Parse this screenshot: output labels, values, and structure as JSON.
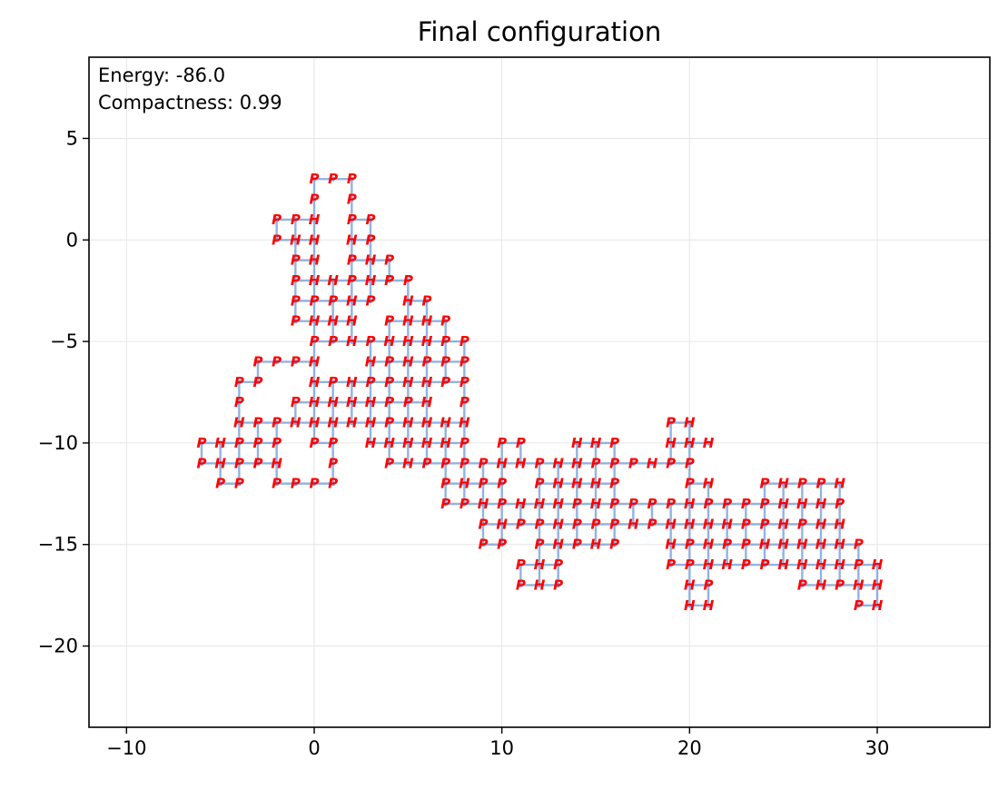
{
  "chart_data": {
    "type": "scatter",
    "title": "Final configuration",
    "xlabel": "",
    "ylabel": "",
    "xlim": [
      -12,
      36
    ],
    "ylim": [
      -24,
      9
    ],
    "x_ticks": [
      -10,
      0,
      10,
      20,
      30
    ],
    "x_tick_labels": [
      "−10",
      "0",
      "10",
      "20",
      "30"
    ],
    "y_ticks": [
      5,
      0,
      -5,
      -10,
      -15,
      -20
    ],
    "y_tick_labels": [
      "5",
      "0",
      "−5",
      "−10",
      "−15",
      "−20"
    ],
    "grid": true,
    "annotations": [
      "Energy: -86.0",
      "Compactness: 0.99"
    ],
    "chain_color": "#7ea6dd",
    "label_color": "#ff0000",
    "residues": [
      {
        "x": 0,
        "y": 3,
        "t": "P"
      },
      {
        "x": 1,
        "y": 3,
        "t": "P"
      },
      {
        "x": 2,
        "y": 3,
        "t": "P"
      },
      {
        "x": 0,
        "y": 2,
        "t": "P"
      },
      {
        "x": 2,
        "y": 2,
        "t": "P"
      },
      {
        "x": -2,
        "y": 1,
        "t": "P"
      },
      {
        "x": -1,
        "y": 1,
        "t": "P"
      },
      {
        "x": 0,
        "y": 1,
        "t": "H"
      },
      {
        "x": 2,
        "y": 1,
        "t": "P"
      },
      {
        "x": 3,
        "y": 1,
        "t": "P"
      },
      {
        "x": -2,
        "y": 0,
        "t": "P"
      },
      {
        "x": -1,
        "y": 0,
        "t": "H"
      },
      {
        "x": 0,
        "y": 0,
        "t": "H"
      },
      {
        "x": 2,
        "y": 0,
        "t": "H"
      },
      {
        "x": 3,
        "y": 0,
        "t": "P"
      },
      {
        "x": -1,
        "y": -1,
        "t": "P"
      },
      {
        "x": 0,
        "y": -1,
        "t": "H"
      },
      {
        "x": 2,
        "y": -1,
        "t": "P"
      },
      {
        "x": 3,
        "y": -1,
        "t": "H"
      },
      {
        "x": 4,
        "y": -1,
        "t": "P"
      },
      {
        "x": -1,
        "y": -2,
        "t": "P"
      },
      {
        "x": 0,
        "y": -2,
        "t": "H"
      },
      {
        "x": 1,
        "y": -2,
        "t": "H"
      },
      {
        "x": 2,
        "y": -2,
        "t": "P"
      },
      {
        "x": 3,
        "y": -2,
        "t": "H"
      },
      {
        "x": 4,
        "y": -2,
        "t": "P"
      },
      {
        "x": 5,
        "y": -2,
        "t": "P"
      },
      {
        "x": -1,
        "y": -3,
        "t": "P"
      },
      {
        "x": 0,
        "y": -3,
        "t": "P"
      },
      {
        "x": 1,
        "y": -3,
        "t": "P"
      },
      {
        "x": 2,
        "y": -3,
        "t": "H"
      },
      {
        "x": 3,
        "y": -3,
        "t": "P"
      },
      {
        "x": 5,
        "y": -3,
        "t": "H"
      },
      {
        "x": 6,
        "y": -3,
        "t": "P"
      },
      {
        "x": -1,
        "y": -4,
        "t": "P"
      },
      {
        "x": 0,
        "y": -4,
        "t": "H"
      },
      {
        "x": 1,
        "y": -4,
        "t": "H"
      },
      {
        "x": 2,
        "y": -4,
        "t": "H"
      },
      {
        "x": 4,
        "y": -4,
        "t": "P"
      },
      {
        "x": 5,
        "y": -4,
        "t": "H"
      },
      {
        "x": 6,
        "y": -4,
        "t": "H"
      },
      {
        "x": 7,
        "y": -4,
        "t": "P"
      },
      {
        "x": 0,
        "y": -5,
        "t": "P"
      },
      {
        "x": 1,
        "y": -5,
        "t": "P"
      },
      {
        "x": 2,
        "y": -5,
        "t": "H"
      },
      {
        "x": 3,
        "y": -5,
        "t": "P"
      },
      {
        "x": 4,
        "y": -5,
        "t": "H"
      },
      {
        "x": 5,
        "y": -5,
        "t": "H"
      },
      {
        "x": 6,
        "y": -5,
        "t": "H"
      },
      {
        "x": 7,
        "y": -5,
        "t": "P"
      },
      {
        "x": 8,
        "y": -5,
        "t": "P"
      },
      {
        "x": -3,
        "y": -6,
        "t": "P"
      },
      {
        "x": -2,
        "y": -6,
        "t": "P"
      },
      {
        "x": -1,
        "y": -6,
        "t": "P"
      },
      {
        "x": 0,
        "y": -6,
        "t": "H"
      },
      {
        "x": 3,
        "y": -6,
        "t": "H"
      },
      {
        "x": 4,
        "y": -6,
        "t": "P"
      },
      {
        "x": 5,
        "y": -6,
        "t": "H"
      },
      {
        "x": 6,
        "y": -6,
        "t": "P"
      },
      {
        "x": 7,
        "y": -6,
        "t": "P"
      },
      {
        "x": 8,
        "y": -6,
        "t": "P"
      },
      {
        "x": -4,
        "y": -7,
        "t": "P"
      },
      {
        "x": -3,
        "y": -7,
        "t": "P"
      },
      {
        "x": 0,
        "y": -7,
        "t": "H"
      },
      {
        "x": 1,
        "y": -7,
        "t": "P"
      },
      {
        "x": 2,
        "y": -7,
        "t": "H"
      },
      {
        "x": 3,
        "y": -7,
        "t": "P"
      },
      {
        "x": 4,
        "y": -7,
        "t": "P"
      },
      {
        "x": 5,
        "y": -7,
        "t": "H"
      },
      {
        "x": 6,
        "y": -7,
        "t": "H"
      },
      {
        "x": 7,
        "y": -7,
        "t": "P"
      },
      {
        "x": 8,
        "y": -7,
        "t": "P"
      },
      {
        "x": -4,
        "y": -8,
        "t": "P"
      },
      {
        "x": -1,
        "y": -8,
        "t": "P"
      },
      {
        "x": 0,
        "y": -8,
        "t": "H"
      },
      {
        "x": 1,
        "y": -8,
        "t": "H"
      },
      {
        "x": 2,
        "y": -8,
        "t": "H"
      },
      {
        "x": 3,
        "y": -8,
        "t": "H"
      },
      {
        "x": 4,
        "y": -8,
        "t": "P"
      },
      {
        "x": 5,
        "y": -8,
        "t": "P"
      },
      {
        "x": 6,
        "y": -8,
        "t": "H"
      },
      {
        "x": 8,
        "y": -8,
        "t": "P"
      },
      {
        "x": -4,
        "y": -9,
        "t": "H"
      },
      {
        "x": -3,
        "y": -9,
        "t": "P"
      },
      {
        "x": -2,
        "y": -9,
        "t": "P"
      },
      {
        "x": -1,
        "y": -9,
        "t": "H"
      },
      {
        "x": 0,
        "y": -9,
        "t": "H"
      },
      {
        "x": 1,
        "y": -9,
        "t": "H"
      },
      {
        "x": 2,
        "y": -9,
        "t": "H"
      },
      {
        "x": 3,
        "y": -9,
        "t": "H"
      },
      {
        "x": 4,
        "y": -9,
        "t": "P"
      },
      {
        "x": 5,
        "y": -9,
        "t": "H"
      },
      {
        "x": 6,
        "y": -9,
        "t": "H"
      },
      {
        "x": 7,
        "y": -9,
        "t": "H"
      },
      {
        "x": 8,
        "y": -9,
        "t": "H"
      },
      {
        "x": 19,
        "y": -9,
        "t": "P"
      },
      {
        "x": 20,
        "y": -9,
        "t": "H"
      },
      {
        "x": -6,
        "y": -10,
        "t": "P"
      },
      {
        "x": -5,
        "y": -10,
        "t": "H"
      },
      {
        "x": -4,
        "y": -10,
        "t": "P"
      },
      {
        "x": -3,
        "y": -10,
        "t": "P"
      },
      {
        "x": -2,
        "y": -10,
        "t": "P"
      },
      {
        "x": 0,
        "y": -10,
        "t": "P"
      },
      {
        "x": 1,
        "y": -10,
        "t": "P"
      },
      {
        "x": 3,
        "y": -10,
        "t": "H"
      },
      {
        "x": 4,
        "y": -10,
        "t": "H"
      },
      {
        "x": 5,
        "y": -10,
        "t": "H"
      },
      {
        "x": 6,
        "y": -10,
        "t": "H"
      },
      {
        "x": 7,
        "y": -10,
        "t": "H"
      },
      {
        "x": 8,
        "y": -10,
        "t": "P"
      },
      {
        "x": 10,
        "y": -10,
        "t": "P"
      },
      {
        "x": 11,
        "y": -10,
        "t": "P"
      },
      {
        "x": 14,
        "y": -10,
        "t": "H"
      },
      {
        "x": 15,
        "y": -10,
        "t": "H"
      },
      {
        "x": 16,
        "y": -10,
        "t": "P"
      },
      {
        "x": 19,
        "y": -10,
        "t": "H"
      },
      {
        "x": 20,
        "y": -10,
        "t": "H"
      },
      {
        "x": 21,
        "y": -10,
        "t": "H"
      },
      {
        "x": -6,
        "y": -11,
        "t": "P"
      },
      {
        "x": -5,
        "y": -11,
        "t": "H"
      },
      {
        "x": -4,
        "y": -11,
        "t": "P"
      },
      {
        "x": -3,
        "y": -11,
        "t": "P"
      },
      {
        "x": -2,
        "y": -11,
        "t": "H"
      },
      {
        "x": 1,
        "y": -11,
        "t": "P"
      },
      {
        "x": 4,
        "y": -11,
        "t": "P"
      },
      {
        "x": 5,
        "y": -11,
        "t": "H"
      },
      {
        "x": 6,
        "y": -11,
        "t": "P"
      },
      {
        "x": 7,
        "y": -11,
        "t": "P"
      },
      {
        "x": 8,
        "y": -11,
        "t": "P"
      },
      {
        "x": 9,
        "y": -11,
        "t": "P"
      },
      {
        "x": 10,
        "y": -11,
        "t": "H"
      },
      {
        "x": 11,
        "y": -11,
        "t": "H"
      },
      {
        "x": 12,
        "y": -11,
        "t": "P"
      },
      {
        "x": 13,
        "y": -11,
        "t": "H"
      },
      {
        "x": 14,
        "y": -11,
        "t": "H"
      },
      {
        "x": 15,
        "y": -11,
        "t": "P"
      },
      {
        "x": 16,
        "y": -11,
        "t": "P"
      },
      {
        "x": 17,
        "y": -11,
        "t": "P"
      },
      {
        "x": 18,
        "y": -11,
        "t": "H"
      },
      {
        "x": 19,
        "y": -11,
        "t": "P"
      },
      {
        "x": 20,
        "y": -11,
        "t": "P"
      },
      {
        "x": -5,
        "y": -12,
        "t": "P"
      },
      {
        "x": -4,
        "y": -12,
        "t": "P"
      },
      {
        "x": -2,
        "y": -12,
        "t": "P"
      },
      {
        "x": -1,
        "y": -12,
        "t": "P"
      },
      {
        "x": 0,
        "y": -12,
        "t": "P"
      },
      {
        "x": 1,
        "y": -12,
        "t": "P"
      },
      {
        "x": 7,
        "y": -12,
        "t": "P"
      },
      {
        "x": 8,
        "y": -12,
        "t": "H"
      },
      {
        "x": 9,
        "y": -12,
        "t": "P"
      },
      {
        "x": 10,
        "y": -12,
        "t": "P"
      },
      {
        "x": 12,
        "y": -12,
        "t": "P"
      },
      {
        "x": 13,
        "y": -12,
        "t": "H"
      },
      {
        "x": 14,
        "y": -12,
        "t": "H"
      },
      {
        "x": 15,
        "y": -12,
        "t": "H"
      },
      {
        "x": 16,
        "y": -12,
        "t": "P"
      },
      {
        "x": 20,
        "y": -12,
        "t": "P"
      },
      {
        "x": 21,
        "y": -12,
        "t": "H"
      },
      {
        "x": 24,
        "y": -12,
        "t": "P"
      },
      {
        "x": 25,
        "y": -12,
        "t": "H"
      },
      {
        "x": 26,
        "y": -12,
        "t": "P"
      },
      {
        "x": 27,
        "y": -12,
        "t": "P"
      },
      {
        "x": 28,
        "y": -12,
        "t": "H"
      },
      {
        "x": 7,
        "y": -13,
        "t": "P"
      },
      {
        "x": 8,
        "y": -13,
        "t": "P"
      },
      {
        "x": 9,
        "y": -13,
        "t": "H"
      },
      {
        "x": 10,
        "y": -13,
        "t": "P"
      },
      {
        "x": 11,
        "y": -13,
        "t": "H"
      },
      {
        "x": 12,
        "y": -13,
        "t": "H"
      },
      {
        "x": 13,
        "y": -13,
        "t": "H"
      },
      {
        "x": 14,
        "y": -13,
        "t": "P"
      },
      {
        "x": 15,
        "y": -13,
        "t": "H"
      },
      {
        "x": 16,
        "y": -13,
        "t": "P"
      },
      {
        "x": 17,
        "y": -13,
        "t": "P"
      },
      {
        "x": 18,
        "y": -13,
        "t": "P"
      },
      {
        "x": 19,
        "y": -13,
        "t": "P"
      },
      {
        "x": 20,
        "y": -13,
        "t": "H"
      },
      {
        "x": 21,
        "y": -13,
        "t": "P"
      },
      {
        "x": 22,
        "y": -13,
        "t": "P"
      },
      {
        "x": 23,
        "y": -13,
        "t": "P"
      },
      {
        "x": 24,
        "y": -13,
        "t": "P"
      },
      {
        "x": 25,
        "y": -13,
        "t": "H"
      },
      {
        "x": 26,
        "y": -13,
        "t": "H"
      },
      {
        "x": 27,
        "y": -13,
        "t": "H"
      },
      {
        "x": 28,
        "y": -13,
        "t": "P"
      },
      {
        "x": 9,
        "y": -14,
        "t": "P"
      },
      {
        "x": 10,
        "y": -14,
        "t": "H"
      },
      {
        "x": 11,
        "y": -14,
        "t": "P"
      },
      {
        "x": 12,
        "y": -14,
        "t": "P"
      },
      {
        "x": 13,
        "y": -14,
        "t": "H"
      },
      {
        "x": 14,
        "y": -14,
        "t": "P"
      },
      {
        "x": 15,
        "y": -14,
        "t": "P"
      },
      {
        "x": 16,
        "y": -14,
        "t": "P"
      },
      {
        "x": 17,
        "y": -14,
        "t": "H"
      },
      {
        "x": 18,
        "y": -14,
        "t": "P"
      },
      {
        "x": 19,
        "y": -14,
        "t": "H"
      },
      {
        "x": 20,
        "y": -14,
        "t": "H"
      },
      {
        "x": 21,
        "y": -14,
        "t": "H"
      },
      {
        "x": 22,
        "y": -14,
        "t": "H"
      },
      {
        "x": 23,
        "y": -14,
        "t": "P"
      },
      {
        "x": 24,
        "y": -14,
        "t": "P"
      },
      {
        "x": 25,
        "y": -14,
        "t": "H"
      },
      {
        "x": 26,
        "y": -14,
        "t": "P"
      },
      {
        "x": 27,
        "y": -14,
        "t": "H"
      },
      {
        "x": 28,
        "y": -14,
        "t": "H"
      },
      {
        "x": 9,
        "y": -15,
        "t": "P"
      },
      {
        "x": 10,
        "y": -15,
        "t": "P"
      },
      {
        "x": 12,
        "y": -15,
        "t": "P"
      },
      {
        "x": 13,
        "y": -15,
        "t": "H"
      },
      {
        "x": 14,
        "y": -15,
        "t": "P"
      },
      {
        "x": 15,
        "y": -15,
        "t": "H"
      },
      {
        "x": 16,
        "y": -15,
        "t": "P"
      },
      {
        "x": 19,
        "y": -15,
        "t": "H"
      },
      {
        "x": 20,
        "y": -15,
        "t": "P"
      },
      {
        "x": 21,
        "y": -15,
        "t": "H"
      },
      {
        "x": 22,
        "y": -15,
        "t": "P"
      },
      {
        "x": 23,
        "y": -15,
        "t": "P"
      },
      {
        "x": 24,
        "y": -15,
        "t": "H"
      },
      {
        "x": 25,
        "y": -15,
        "t": "H"
      },
      {
        "x": 26,
        "y": -15,
        "t": "H"
      },
      {
        "x": 27,
        "y": -15,
        "t": "H"
      },
      {
        "x": 28,
        "y": -15,
        "t": "H"
      },
      {
        "x": 29,
        "y": -15,
        "t": "P"
      },
      {
        "x": 11,
        "y": -16,
        "t": "P"
      },
      {
        "x": 12,
        "y": -16,
        "t": "H"
      },
      {
        "x": 13,
        "y": -16,
        "t": "P"
      },
      {
        "x": 19,
        "y": -16,
        "t": "P"
      },
      {
        "x": 20,
        "y": -16,
        "t": "P"
      },
      {
        "x": 21,
        "y": -16,
        "t": "H"
      },
      {
        "x": 22,
        "y": -16,
        "t": "H"
      },
      {
        "x": 23,
        "y": -16,
        "t": "P"
      },
      {
        "x": 24,
        "y": -16,
        "t": "P"
      },
      {
        "x": 25,
        "y": -16,
        "t": "H"
      },
      {
        "x": 26,
        "y": -16,
        "t": "H"
      },
      {
        "x": 27,
        "y": -16,
        "t": "H"
      },
      {
        "x": 28,
        "y": -16,
        "t": "H"
      },
      {
        "x": 29,
        "y": -16,
        "t": "P"
      },
      {
        "x": 30,
        "y": -16,
        "t": "H"
      },
      {
        "x": 11,
        "y": -17,
        "t": "P"
      },
      {
        "x": 12,
        "y": -17,
        "t": "H"
      },
      {
        "x": 13,
        "y": -17,
        "t": "P"
      },
      {
        "x": 20,
        "y": -17,
        "t": "H"
      },
      {
        "x": 21,
        "y": -17,
        "t": "P"
      },
      {
        "x": 26,
        "y": -17,
        "t": "P"
      },
      {
        "x": 27,
        "y": -17,
        "t": "H"
      },
      {
        "x": 28,
        "y": -17,
        "t": "P"
      },
      {
        "x": 29,
        "y": -17,
        "t": "H"
      },
      {
        "x": 30,
        "y": -17,
        "t": "H"
      },
      {
        "x": 20,
        "y": -18,
        "t": "H"
      },
      {
        "x": 21,
        "y": -18,
        "t": "H"
      },
      {
        "x": 29,
        "y": -18,
        "t": "P"
      },
      {
        "x": 30,
        "y": -18,
        "t": "H"
      }
    ]
  }
}
